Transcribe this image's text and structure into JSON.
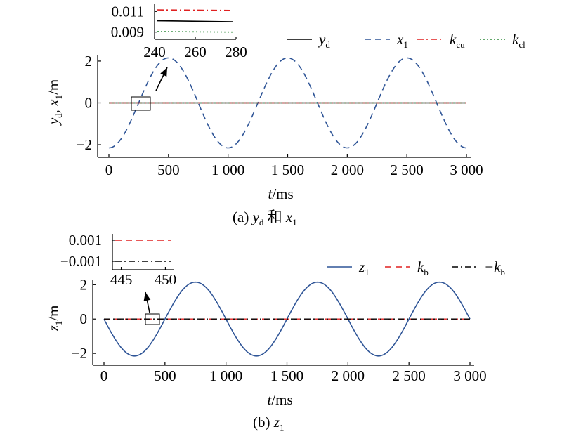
{
  "chart_data": [
    {
      "type": "line",
      "caption_prefix": "(a)",
      "caption_var": "y",
      "caption_var_sub": "d",
      "caption_mid": "和",
      "caption_var2": "x",
      "caption_var2_sub": "1",
      "xlabel_var": "t",
      "xlabel_unit": "/ms",
      "ylabel_parts": [
        "y",
        "d",
        ", ",
        "x",
        "1",
        "/m"
      ],
      "xlim": [
        0,
        3000
      ],
      "ylim": [
        -2.2,
        2.3
      ],
      "xticks": [
        0,
        500,
        1000,
        1500,
        2000,
        2500,
        3000
      ],
      "xtick_labels": [
        "0",
        "500",
        "1 000",
        "1 500",
        "2 000",
        "2 500",
        "3 000"
      ],
      "yticks": [
        -2,
        0,
        2
      ],
      "ytick_labels": [
        "−2",
        "0",
        "2"
      ],
      "series": [
        {
          "name": "y",
          "sub": "d",
          "color": "#000000",
          "dash": "solid",
          "kind": "zero"
        },
        {
          "name": "x",
          "sub": "1",
          "color": "#2f5597",
          "dash": "dashed",
          "kind": "sine",
          "amplitude": 2.15,
          "period": 1000,
          "phase_deg": -90,
          "x_start": 0
        },
        {
          "name": "k",
          "sub": "cu",
          "color": "#e02020",
          "dash": "dashdot",
          "kind": "zero"
        },
        {
          "name": "k",
          "sub": "cl",
          "color": "#2e8b3a",
          "dash": "dotted",
          "kind": "zero"
        }
      ],
      "inset": {
        "xlim": [
          240,
          280
        ],
        "ylim": [
          0.0083,
          0.0117
        ],
        "xticks": [
          240,
          260,
          280
        ],
        "xtick_labels": [
          "240",
          "260",
          "280"
        ],
        "ytick_labels": [
          "0.011",
          "0.009"
        ],
        "ytick_values": [
          0.011,
          0.009
        ],
        "lines": [
          {
            "series": "k_cu",
            "color": "#e02020",
            "dash": "dashdot",
            "y": [
              0.01115,
              0.0111
            ]
          },
          {
            "series": "y_d",
            "color": "#000000",
            "dash": "solid",
            "y": [
              0.0101,
              0.01
            ]
          },
          {
            "series": "k_cl",
            "color": "#2e8b3a",
            "dash": "dotted",
            "y": [
              0.00905,
              0.009
            ]
          }
        ]
      }
    },
    {
      "type": "line",
      "caption_prefix": "(b)",
      "caption_var": "z",
      "caption_var_sub": "1",
      "xlabel_var": "t",
      "xlabel_unit": "/ms",
      "ylabel_parts": [
        "z",
        "1",
        "/m"
      ],
      "xlim": [
        0,
        3000
      ],
      "ylim": [
        -2.2,
        2.3
      ],
      "xticks": [
        0,
        500,
        1000,
        1500,
        2000,
        2500,
        3000
      ],
      "xtick_labels": [
        "0",
        "500",
        "1 000",
        "1 500",
        "2 000",
        "2 500",
        "3 000"
      ],
      "yticks": [
        -2,
        0,
        2
      ],
      "ytick_labels": [
        "−2",
        "0",
        "2"
      ],
      "series": [
        {
          "name": "z",
          "sub": "1",
          "color": "#2f5597",
          "dash": "solid",
          "kind": "sine",
          "amplitude": 2.15,
          "period": 1000,
          "phase_deg": 180,
          "x_start": 0
        },
        {
          "name": "k",
          "sub": "b",
          "color": "#e02020",
          "dash": "dashed",
          "kind": "zero"
        },
        {
          "name": "−k",
          "sub": "b",
          "color": "#000000",
          "dash": "dashdot",
          "kind": "zero"
        }
      ],
      "inset": {
        "xlim": [
          444,
          451
        ],
        "ylim": [
          -0.0018,
          0.0016
        ],
        "xticks": [
          445,
          450
        ],
        "xtick_labels": [
          "445",
          "450"
        ],
        "ytick_labels": [
          "0.001",
          "−0.001"
        ],
        "ytick_values": [
          0.001,
          -0.001
        ],
        "lines": [
          {
            "series": "k_b",
            "color": "#e02020",
            "dash": "dashed",
            "y": [
              0.001,
              0.001
            ]
          },
          {
            "series": "-k_b",
            "color": "#000000",
            "dash": "dashdot",
            "y": [
              -0.001,
              -0.001
            ]
          }
        ]
      }
    }
  ]
}
